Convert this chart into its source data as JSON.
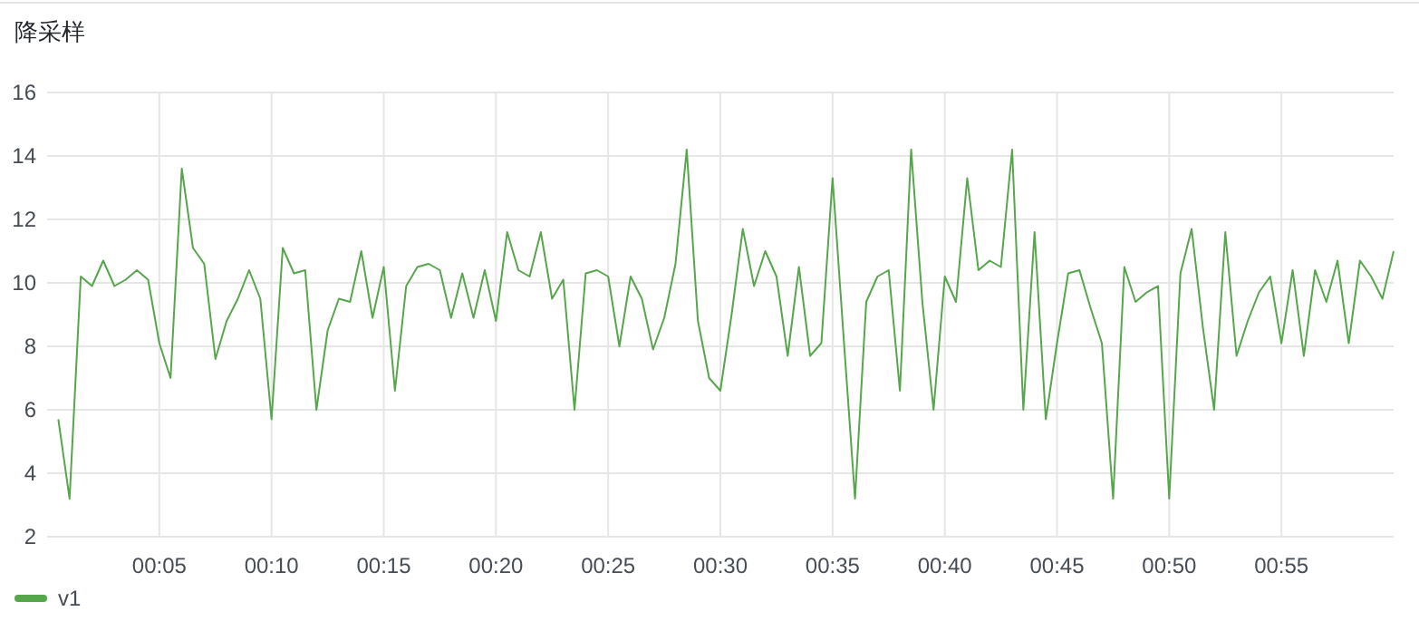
{
  "chart_data": {
    "type": "line",
    "title": "降采样",
    "x": [
      0.00833,
      0.01667,
      0.025,
      0.03333,
      0.04167,
      0.05,
      0.05833,
      0.06667,
      0.075,
      0.08333,
      0.09167,
      0.1,
      0.10833,
      0.11667,
      0.125,
      0.13333,
      0.14167,
      0.15,
      0.15833,
      0.16667,
      0.175,
      0.18333,
      0.19167,
      0.2,
      0.20833,
      0.21667,
      0.225,
      0.23333,
      0.24167,
      0.25,
      0.25833,
      0.26667,
      0.275,
      0.28333,
      0.29167,
      0.3,
      0.30833,
      0.31667,
      0.325,
      0.33333,
      0.34167,
      0.35,
      0.35833,
      0.36667,
      0.375,
      0.38333,
      0.39167,
      0.4,
      0.40833,
      0.41667,
      0.425,
      0.43333,
      0.44167,
      0.45,
      0.45833,
      0.46667,
      0.475,
      0.48333,
      0.49167,
      0.5,
      0.50833,
      0.51667,
      0.525,
      0.53333,
      0.54167,
      0.55,
      0.55833,
      0.56667,
      0.575,
      0.58333,
      0.59167,
      0.6,
      0.60833,
      0.61667,
      0.625,
      0.63333,
      0.64167,
      0.65,
      0.65833,
      0.66667,
      0.675,
      0.68333,
      0.69167,
      0.7,
      0.70833,
      0.71667,
      0.725,
      0.73333,
      0.74167,
      0.75,
      0.75833,
      0.76667,
      0.775,
      0.78333,
      0.79167,
      0.8,
      0.80833,
      0.81667,
      0.825,
      0.83333,
      0.84167,
      0.85,
      0.85833,
      0.86667,
      0.875,
      0.88333,
      0.89167,
      0.9,
      0.90833,
      0.91667,
      0.925,
      0.93333,
      0.94167,
      0.95,
      0.95833,
      0.96667,
      0.975,
      0.98333,
      0.99167,
      1
    ],
    "series": [
      {
        "name": "v1",
        "color": "#56a64b",
        "values": [
          5.7,
          3.2,
          10.2,
          9.9,
          10.7,
          9.9,
          10.1,
          10.4,
          10.1,
          8.1,
          7.0,
          13.6,
          11.1,
          10.6,
          7.6,
          8.8,
          9.5,
          10.4,
          9.5,
          5.7,
          11.1,
          10.3,
          10.4,
          6.0,
          8.5,
          9.5,
          9.4,
          11.0,
          8.9,
          10.5,
          6.6,
          9.9,
          10.5,
          10.6,
          10.4,
          8.9,
          10.3,
          8.9,
          10.4,
          8.8,
          11.6,
          10.4,
          10.2,
          11.6,
          9.5,
          10.1,
          6.0,
          10.3,
          10.4,
          10.2,
          8.0,
          10.2,
          9.5,
          7.9,
          8.9,
          10.6,
          14.2,
          8.8,
          7.0,
          6.6,
          9.0,
          11.7,
          9.9,
          11.0,
          10.2,
          7.7,
          10.5,
          7.7,
          8.1,
          13.3,
          8.2,
          3.2,
          9.4,
          10.2,
          10.4,
          6.6,
          14.2,
          9.4,
          6.0,
          10.2,
          9.4,
          13.3,
          10.4,
          10.7,
          10.5,
          14.2,
          6.0,
          11.6,
          5.7,
          8.1,
          10.3,
          10.4,
          9.2,
          8.1,
          3.2,
          10.5,
          9.4,
          9.7,
          9.9,
          3.2,
          10.3,
          11.7,
          8.6,
          6.0,
          11.6,
          7.7,
          8.8,
          9.7,
          10.2,
          8.1,
          10.4,
          7.7,
          10.4,
          9.4,
          10.7,
          8.1,
          10.7,
          10.2,
          9.5,
          11.0
        ]
      }
    ],
    "xlim": [
      0,
      1
    ],
    "xticks": [
      {
        "value": 0.08333,
        "label": "00:05"
      },
      {
        "value": 0.16667,
        "label": "00:10"
      },
      {
        "value": 0.25,
        "label": "00:15"
      },
      {
        "value": 0.33333,
        "label": "00:20"
      },
      {
        "value": 0.41667,
        "label": "00:25"
      },
      {
        "value": 0.5,
        "label": "00:30"
      },
      {
        "value": 0.58333,
        "label": "00:35"
      },
      {
        "value": 0.66667,
        "label": "00:40"
      },
      {
        "value": 0.75,
        "label": "00:45"
      },
      {
        "value": 0.83333,
        "label": "00:50"
      },
      {
        "value": 0.91667,
        "label": "00:55"
      }
    ],
    "ylim": [
      2,
      16
    ],
    "yticks": [
      2,
      4,
      6,
      8,
      10,
      12,
      14,
      16
    ],
    "grid": true,
    "legend": "bottom left",
    "marker": "none",
    "line_style": "solid"
  }
}
